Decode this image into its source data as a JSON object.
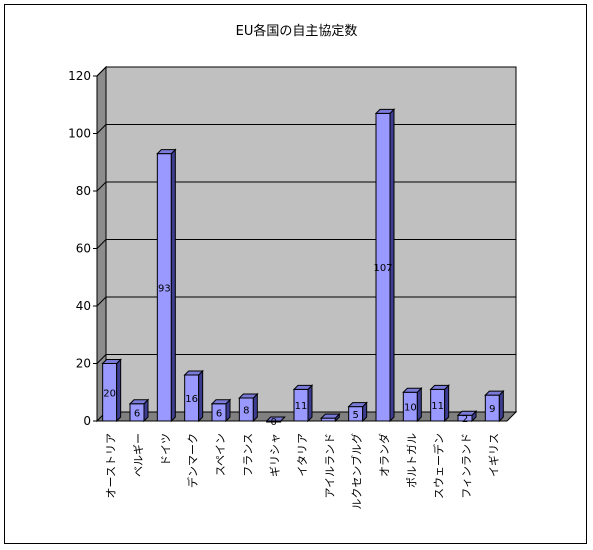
{
  "chart_data": {
    "type": "bar",
    "title": "EU各国の自主協定数",
    "xlabel": "",
    "ylabel": "",
    "ylim": [
      0,
      120
    ],
    "yticks": [
      "0",
      "20",
      "40",
      "60",
      "80",
      "100",
      "120"
    ],
    "grid": true,
    "legend": "none",
    "categories": [
      "オーストリア",
      "ベルギー",
      "ドイツ",
      "デンマーク",
      "スペイン",
      "フランス",
      "ギリシャ",
      "イタリア",
      "アイルランド",
      "ルクセンブルグ",
      "オランダ",
      "ポルトガル",
      "スウェーデン",
      "フィンランド",
      "イギリス"
    ],
    "values": [
      20,
      6,
      93,
      16,
      6,
      8,
      0,
      11,
      1,
      5,
      107,
      10,
      11,
      2,
      9
    ],
    "data_labels": [
      "20",
      "6",
      "93",
      "16",
      "6",
      "8",
      "0",
      "11",
      "",
      "5",
      "107",
      "10",
      "11",
      "2",
      "9"
    ],
    "colors": {
      "bar_front": "#9999ff",
      "bar_side": "#3d3d8f",
      "bar_top": "#7a7ad9",
      "back_wall": "#c0c0c0",
      "side_wall": "#8c8c8c",
      "floor": "#808080",
      "gridline": "#000000"
    }
  }
}
